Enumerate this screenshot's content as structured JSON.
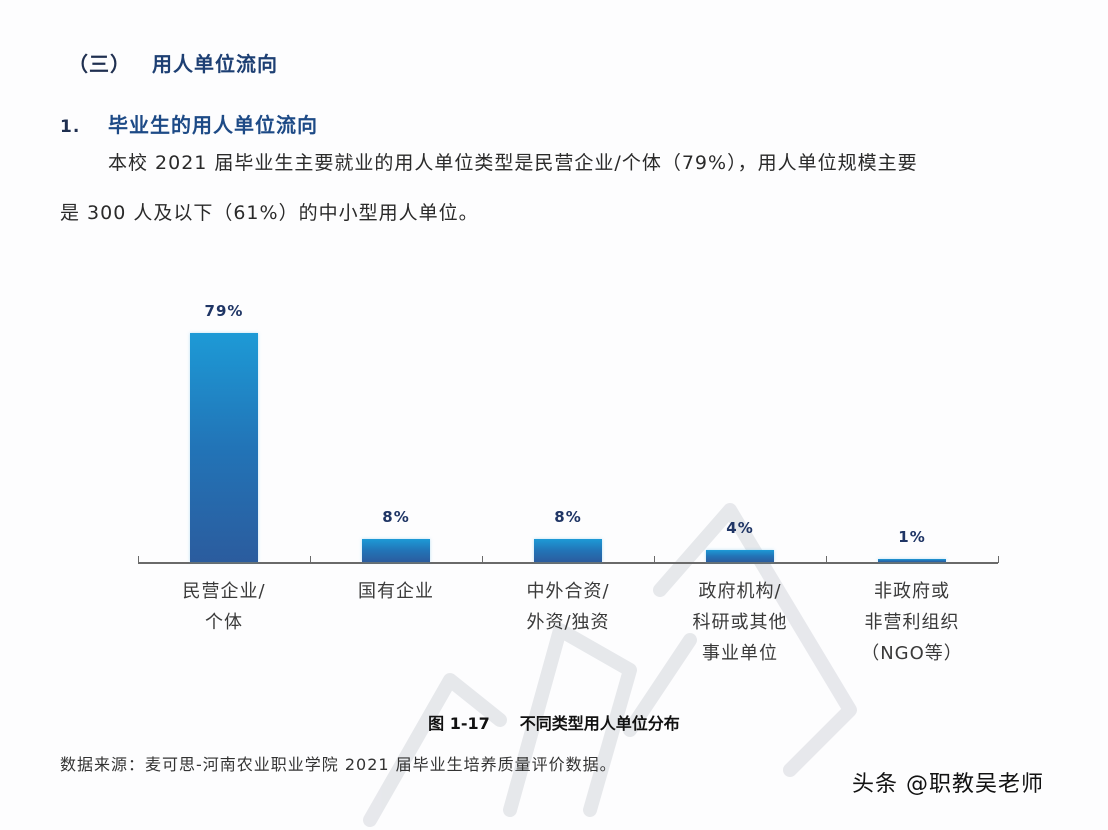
{
  "section": {
    "number": "（三）",
    "title": "用人单位流向"
  },
  "subsection": {
    "number": "1.",
    "title": "毕业生的用人单位流向"
  },
  "paragraph": {
    "line1": "本校 2021 届毕业生主要就业的用人单位类型是民营企业/个体（79%），用人单位规模主要",
    "line2": "是 300 人及以下（61%）的中小型用人单位。"
  },
  "chart_data": {
    "type": "bar",
    "title": "图 1-17　不同类型用人单位分布",
    "categories": [
      "民营企业/\n个体",
      "国有企业",
      "中外合资/\n外资/独资",
      "政府机构/\n科研或其他\n事业单位",
      "非政府或\n非营利组织\n（NGO等）"
    ],
    "values": [
      79,
      8,
      8,
      4,
      1
    ],
    "value_labels": [
      "79%",
      "8%",
      "8%",
      "4%",
      "1%"
    ],
    "xlabel": "",
    "ylabel": "",
    "ylim": [
      0,
      100
    ],
    "grid": false,
    "legend": "none",
    "bar_color_top": "#1d9ad6",
    "bar_color_bottom": "#2b5c9e"
  },
  "caption": {
    "figure_number": "图 1-17",
    "figure_title": "不同类型用人单位分布"
  },
  "source": "数据来源：麦可思-河南农业职业学院 2021 届毕业生培养质量评价数据。",
  "brand": "头条 @职教吴老师"
}
